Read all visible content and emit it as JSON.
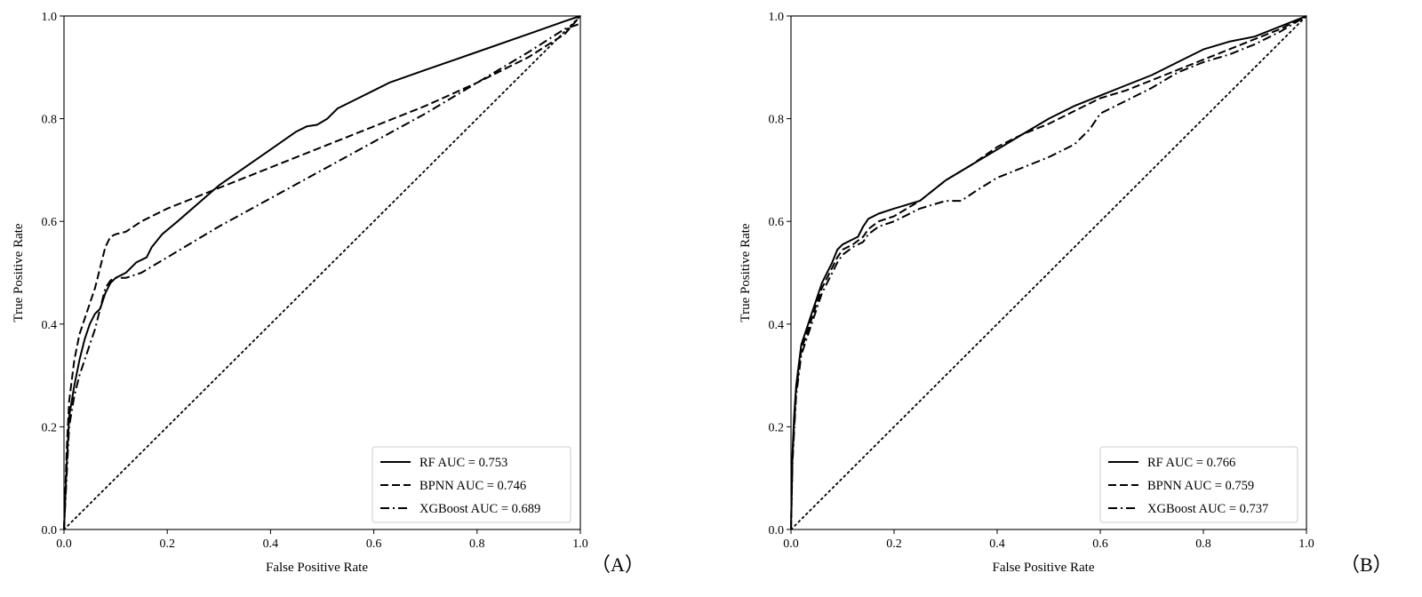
{
  "chart_data": [
    {
      "type": "line",
      "panel_label": "（A）",
      "xlabel": "False Positive Rate",
      "ylabel": "True Positive Rate",
      "xlim": [
        0,
        1
      ],
      "ylim": [
        0,
        1
      ],
      "xticks": [
        "0.0",
        "0.2",
        "0.4",
        "0.6",
        "0.8",
        "1.0"
      ],
      "yticks": [
        "0.0",
        "0.2",
        "0.4",
        "0.6",
        "0.8",
        "1.0"
      ],
      "grid": false,
      "legend_position": "lower-right",
      "reference_line": {
        "style": "dotted",
        "points": [
          [
            0,
            0
          ],
          [
            1,
            1
          ]
        ]
      },
      "series": [
        {
          "name": "RF AUC = 0.753",
          "style": "solid",
          "points": [
            [
              0,
              0
            ],
            [
              0.005,
              0.12
            ],
            [
              0.01,
              0.22
            ],
            [
              0.02,
              0.28
            ],
            [
              0.03,
              0.33
            ],
            [
              0.04,
              0.37
            ],
            [
              0.05,
              0.4
            ],
            [
              0.06,
              0.42
            ],
            [
              0.07,
              0.43
            ],
            [
              0.08,
              0.46
            ],
            [
              0.09,
              0.48
            ],
            [
              0.1,
              0.49
            ],
            [
              0.12,
              0.5
            ],
            [
              0.14,
              0.52
            ],
            [
              0.16,
              0.53
            ],
            [
              0.17,
              0.55
            ],
            [
              0.19,
              0.575
            ],
            [
              0.22,
              0.6
            ],
            [
              0.3,
              0.67
            ],
            [
              0.4,
              0.74
            ],
            [
              0.45,
              0.775
            ],
            [
              0.47,
              0.785
            ],
            [
              0.49,
              0.788
            ],
            [
              0.51,
              0.8
            ],
            [
              0.53,
              0.82
            ],
            [
              0.56,
              0.835
            ],
            [
              0.6,
              0.855
            ],
            [
              0.63,
              0.87
            ],
            [
              0.7,
              0.895
            ],
            [
              0.8,
              0.93
            ],
            [
              0.9,
              0.965
            ],
            [
              0.97,
              0.99
            ],
            [
              1.0,
              1.0
            ]
          ]
        },
        {
          "name": "BPNN AUC = 0.746",
          "style": "dashed",
          "points": [
            [
              0,
              0
            ],
            [
              0.005,
              0.15
            ],
            [
              0.01,
              0.25
            ],
            [
              0.02,
              0.33
            ],
            [
              0.03,
              0.38
            ],
            [
              0.04,
              0.41
            ],
            [
              0.05,
              0.44
            ],
            [
              0.06,
              0.47
            ],
            [
              0.07,
              0.51
            ],
            [
              0.08,
              0.55
            ],
            [
              0.09,
              0.57
            ],
            [
              0.1,
              0.575
            ],
            [
              0.12,
              0.58
            ],
            [
              0.15,
              0.6
            ],
            [
              0.2,
              0.625
            ],
            [
              0.3,
              0.665
            ],
            [
              0.4,
              0.705
            ],
            [
              0.5,
              0.745
            ],
            [
              0.6,
              0.785
            ],
            [
              0.7,
              0.825
            ],
            [
              0.8,
              0.87
            ],
            [
              0.9,
              0.92
            ],
            [
              0.97,
              0.965
            ],
            [
              1.0,
              1.0
            ]
          ]
        },
        {
          "name": "XGBoost AUC = 0.689",
          "style": "dashdot",
          "points": [
            [
              0,
              0
            ],
            [
              0.005,
              0.1
            ],
            [
              0.01,
              0.2
            ],
            [
              0.02,
              0.26
            ],
            [
              0.03,
              0.3
            ],
            [
              0.04,
              0.33
            ],
            [
              0.05,
              0.36
            ],
            [
              0.06,
              0.39
            ],
            [
              0.07,
              0.43
            ],
            [
              0.08,
              0.47
            ],
            [
              0.09,
              0.485
            ],
            [
              0.1,
              0.49
            ],
            [
              0.12,
              0.49
            ],
            [
              0.15,
              0.5
            ],
            [
              0.2,
              0.53
            ],
            [
              0.3,
              0.59
            ],
            [
              0.4,
              0.645
            ],
            [
              0.5,
              0.7
            ],
            [
              0.6,
              0.755
            ],
            [
              0.7,
              0.81
            ],
            [
              0.8,
              0.87
            ],
            [
              0.9,
              0.93
            ],
            [
              0.97,
              0.975
            ],
            [
              1.0,
              0.985
            ]
          ]
        }
      ],
      "legend": [
        "RF AUC = 0.753",
        "BPNN AUC = 0.746",
        "XGBoost AUC = 0.689"
      ]
    },
    {
      "type": "line",
      "panel_label": "（B）",
      "xlabel": "False Positive Rate",
      "ylabel": "True Positive Rate",
      "xlim": [
        0,
        1
      ],
      "ylim": [
        0,
        1
      ],
      "xticks": [
        "0.0",
        "0.2",
        "0.4",
        "0.6",
        "0.8",
        "1.0"
      ],
      "yticks": [
        "0.0",
        "0.2",
        "0.4",
        "0.6",
        "0.8",
        "1.0"
      ],
      "grid": false,
      "legend_position": "lower-right",
      "reference_line": {
        "style": "dotted",
        "points": [
          [
            0,
            0
          ],
          [
            1,
            1
          ]
        ]
      },
      "series": [
        {
          "name": "RF AUC = 0.766",
          "style": "solid",
          "points": [
            [
              0,
              0
            ],
            [
              0.003,
              0.15
            ],
            [
              0.006,
              0.22
            ],
            [
              0.01,
              0.28
            ],
            [
              0.015,
              0.32
            ],
            [
              0.02,
              0.36
            ],
            [
              0.03,
              0.39
            ],
            [
              0.04,
              0.42
            ],
            [
              0.05,
              0.45
            ],
            [
              0.06,
              0.48
            ],
            [
              0.07,
              0.5
            ],
            [
              0.08,
              0.52
            ],
            [
              0.09,
              0.545
            ],
            [
              0.1,
              0.555
            ],
            [
              0.12,
              0.565
            ],
            [
              0.13,
              0.57
            ],
            [
              0.14,
              0.59
            ],
            [
              0.15,
              0.605
            ],
            [
              0.17,
              0.615
            ],
            [
              0.2,
              0.625
            ],
            [
              0.25,
              0.64
            ],
            [
              0.3,
              0.68
            ],
            [
              0.35,
              0.71
            ],
            [
              0.4,
              0.74
            ],
            [
              0.45,
              0.77
            ],
            [
              0.5,
              0.8
            ],
            [
              0.55,
              0.825
            ],
            [
              0.6,
              0.845
            ],
            [
              0.65,
              0.865
            ],
            [
              0.7,
              0.885
            ],
            [
              0.75,
              0.91
            ],
            [
              0.8,
              0.935
            ],
            [
              0.85,
              0.95
            ],
            [
              0.9,
              0.96
            ],
            [
              0.95,
              0.98
            ],
            [
              1.0,
              1.0
            ]
          ]
        },
        {
          "name": "BPNN AUC = 0.759",
          "style": "dashed",
          "points": [
            [
              0,
              0
            ],
            [
              0.003,
              0.14
            ],
            [
              0.006,
              0.2
            ],
            [
              0.01,
              0.27
            ],
            [
              0.015,
              0.31
            ],
            [
              0.02,
              0.35
            ],
            [
              0.03,
              0.38
            ],
            [
              0.04,
              0.41
            ],
            [
              0.05,
              0.44
            ],
            [
              0.06,
              0.47
            ],
            [
              0.07,
              0.49
            ],
            [
              0.08,
              0.51
            ],
            [
              0.09,
              0.53
            ],
            [
              0.1,
              0.545
            ],
            [
              0.12,
              0.555
            ],
            [
              0.14,
              0.57
            ],
            [
              0.15,
              0.585
            ],
            [
              0.17,
              0.6
            ],
            [
              0.2,
              0.61
            ],
            [
              0.25,
              0.64
            ],
            [
              0.3,
              0.68
            ],
            [
              0.35,
              0.71
            ],
            [
              0.4,
              0.745
            ],
            [
              0.45,
              0.77
            ],
            [
              0.5,
              0.79
            ],
            [
              0.55,
              0.815
            ],
            [
              0.6,
              0.84
            ],
            [
              0.65,
              0.855
            ],
            [
              0.7,
              0.875
            ],
            [
              0.75,
              0.895
            ],
            [
              0.8,
              0.915
            ],
            [
              0.85,
              0.935
            ],
            [
              0.9,
              0.955
            ],
            [
              0.95,
              0.975
            ],
            [
              1.0,
              1.0
            ]
          ]
        },
        {
          "name": "XGBoost AUC = 0.737",
          "style": "dashdot",
          "points": [
            [
              0,
              0
            ],
            [
              0.003,
              0.13
            ],
            [
              0.006,
              0.19
            ],
            [
              0.01,
              0.26
            ],
            [
              0.015,
              0.3
            ],
            [
              0.02,
              0.34
            ],
            [
              0.03,
              0.37
            ],
            [
              0.04,
              0.4
            ],
            [
              0.05,
              0.43
            ],
            [
              0.06,
              0.46
            ],
            [
              0.07,
              0.48
            ],
            [
              0.08,
              0.5
            ],
            [
              0.09,
              0.52
            ],
            [
              0.1,
              0.535
            ],
            [
              0.12,
              0.55
            ],
            [
              0.14,
              0.56
            ],
            [
              0.15,
              0.575
            ],
            [
              0.17,
              0.59
            ],
            [
              0.2,
              0.6
            ],
            [
              0.25,
              0.625
            ],
            [
              0.3,
              0.64
            ],
            [
              0.33,
              0.64
            ],
            [
              0.36,
              0.66
            ],
            [
              0.4,
              0.685
            ],
            [
              0.45,
              0.705
            ],
            [
              0.5,
              0.725
            ],
            [
              0.55,
              0.75
            ],
            [
              0.58,
              0.78
            ],
            [
              0.6,
              0.81
            ],
            [
              0.65,
              0.835
            ],
            [
              0.7,
              0.86
            ],
            [
              0.75,
              0.89
            ],
            [
              0.8,
              0.91
            ],
            [
              0.85,
              0.925
            ],
            [
              0.9,
              0.945
            ],
            [
              0.95,
              0.97
            ],
            [
              1.0,
              1.0
            ]
          ]
        }
      ],
      "legend": [
        "RF AUC = 0.766",
        "BPNN AUC = 0.759",
        "XGBoost AUC = 0.737"
      ]
    }
  ]
}
